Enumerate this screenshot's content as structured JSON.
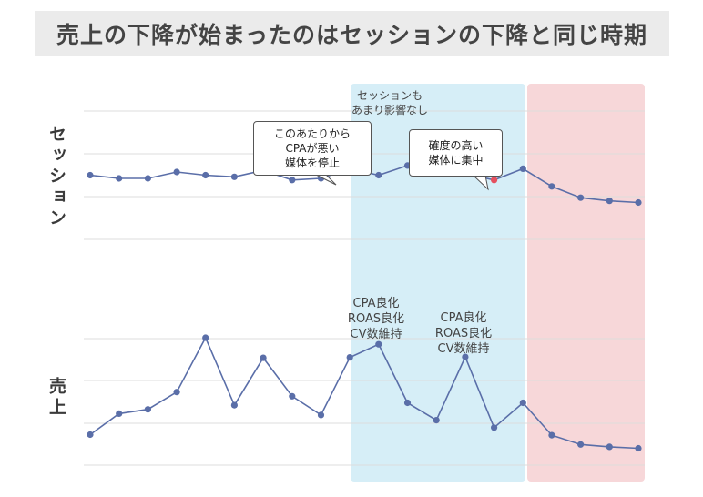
{
  "title": "売上の下降が始まったのはセッションの下降と同じ時期",
  "chart_data": [
    {
      "type": "line",
      "ylabel": "セッション",
      "x": [
        1,
        2,
        3,
        4,
        5,
        6,
        7,
        8,
        9,
        10,
        11,
        12,
        13,
        14,
        15,
        16,
        17,
        18,
        19,
        20
      ],
      "series": [
        {
          "values": [
            100,
            99,
            99,
            101,
            100,
            99.5,
            101.5,
            98.5,
            99,
            102,
            100,
            103,
            102,
            100.5,
            98.5,
            102,
            96.5,
            93,
            92,
            91.5
          ]
        }
      ],
      "ylim": [
        80,
        120
      ],
      "highlighted_points": [
        10,
        15
      ],
      "highlight_color": "#e5505e",
      "line_color": "#5a6ea8"
    },
    {
      "type": "line",
      "ylabel": "売上",
      "x": [
        1,
        2,
        3,
        4,
        5,
        6,
        7,
        8,
        9,
        10,
        11,
        12,
        13,
        14,
        15,
        16,
        17,
        18,
        19,
        20
      ],
      "series": [
        {
          "values": [
            35,
            80,
            89,
            126,
            242,
            98,
            199,
            117,
            77,
            200,
            228,
            103,
            66,
            201,
            50,
            103,
            34,
            14,
            9,
            6
          ]
        }
      ],
      "ylim": [
        -30,
        240
      ],
      "line_color": "#5a6ea8"
    }
  ],
  "regions": [
    {
      "name": "blue-band",
      "color": "#d6eef7",
      "x_range": [
        10,
        16
      ]
    },
    {
      "name": "pink-band",
      "color": "#f7d7d9",
      "x_range": [
        16,
        20
      ]
    }
  ],
  "annotations": {
    "session_note": "セッションも\nあまり影響なし",
    "callout1": "このあたりから\nCPAが悪い\n媒体を停止",
    "callout2": "確度の高い\n媒体に集中",
    "sales_note1": "CPA良化\nROAS良化\nCV数維持",
    "sales_note2": "CPA良化\nROAS良化\nCV数維持"
  }
}
